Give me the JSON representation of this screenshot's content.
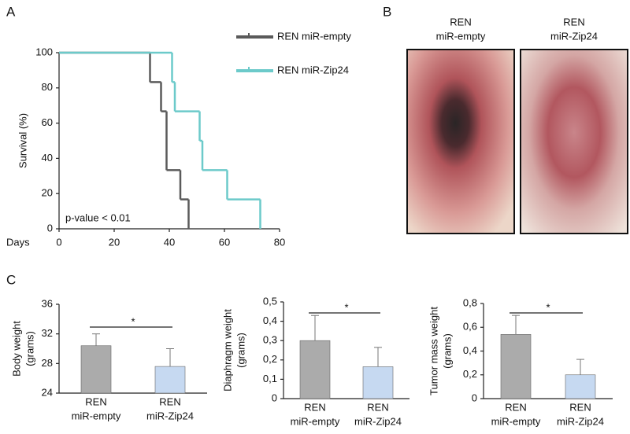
{
  "panel_labels": [
    "A",
    "B",
    "C"
  ],
  "chart_data": [
    {
      "type": "step",
      "xlabel": "Days",
      "ylabel": "Survival (%)",
      "annotation": "p-value < 0.01",
      "xlim": [
        0,
        80
      ],
      "xticks": [
        0,
        20,
        40,
        60,
        80
      ],
      "ylim": [
        0,
        100
      ],
      "yticks": [
        0,
        20,
        40,
        60,
        80,
        100
      ],
      "series": [
        {
          "name": "REN miR-empty",
          "color": "#5a5a5a",
          "x": [
            0,
            33,
            37,
            39,
            44,
            47
          ],
          "values": [
            100,
            83.3,
            66.7,
            33.3,
            16.7,
            0
          ]
        },
        {
          "name": "REN miR-Zip24",
          "color": "#6ccaca",
          "x": [
            0,
            41,
            42,
            51,
            52,
            61,
            73
          ],
          "values": [
            100,
            83.3,
            66.7,
            50,
            33.3,
            16.7,
            0
          ]
        }
      ]
    },
    {
      "type": "bar",
      "ylabel": [
        "Body weight",
        "(grams)"
      ],
      "categories": [
        [
          "REN",
          "miR-empty"
        ],
        [
          "REN",
          "miR-Zip24"
        ]
      ],
      "values": [
        30.4,
        27.6
      ],
      "errors": [
        1.6,
        2.4
      ],
      "colors": [
        "#ababab",
        "#c6d9f1"
      ],
      "annotation": "*",
      "ylim": [
        24,
        36
      ],
      "yticks": [
        24,
        28,
        32,
        36
      ]
    },
    {
      "type": "bar",
      "ylabel": [
        "Diaphragm weight",
        "(grams)"
      ],
      "categories": [
        [
          "REN",
          "miR-empty"
        ],
        [
          "REN",
          "miR-Zip24"
        ]
      ],
      "values": [
        0.3,
        0.165
      ],
      "errors": [
        0.13,
        0.1
      ],
      "colors": [
        "#ababab",
        "#c6d9f1"
      ],
      "annotation": "*",
      "ylim": [
        0,
        0.5
      ],
      "yticks": [
        0,
        {
          "value": 0.1,
          "label": "0,1"
        },
        {
          "value": 0.2,
          "label": "0,2"
        },
        {
          "value": 0.3,
          "label": "0,3"
        },
        {
          "value": 0.4,
          "label": "0,4"
        },
        {
          "value": 0.5,
          "label": "0,5"
        }
      ]
    },
    {
      "type": "bar",
      "ylabel": [
        "Tumor mass weight",
        "(grams)"
      ],
      "categories": [
        [
          "REN",
          "miR-empty"
        ],
        [
          "REN",
          "miR-Zip24"
        ]
      ],
      "values": [
        0.54,
        0.2
      ],
      "errors": [
        0.16,
        0.13
      ],
      "colors": [
        "#ababab",
        "#c6d9f1"
      ],
      "annotation": "*",
      "ylim": [
        0,
        0.8
      ],
      "yticks": [
        0,
        {
          "value": 0.2,
          "label": "0,2"
        },
        {
          "value": 0.4,
          "label": "0,4"
        },
        {
          "value": 0.6,
          "label": "0,6"
        },
        {
          "value": 0.8,
          "label": "0,8"
        }
      ]
    }
  ],
  "panel_b": {
    "images": [
      {
        "label": [
          "REN",
          "miR-empty"
        ]
      },
      {
        "label": [
          "REN",
          "miR-Zip24"
        ]
      }
    ]
  }
}
